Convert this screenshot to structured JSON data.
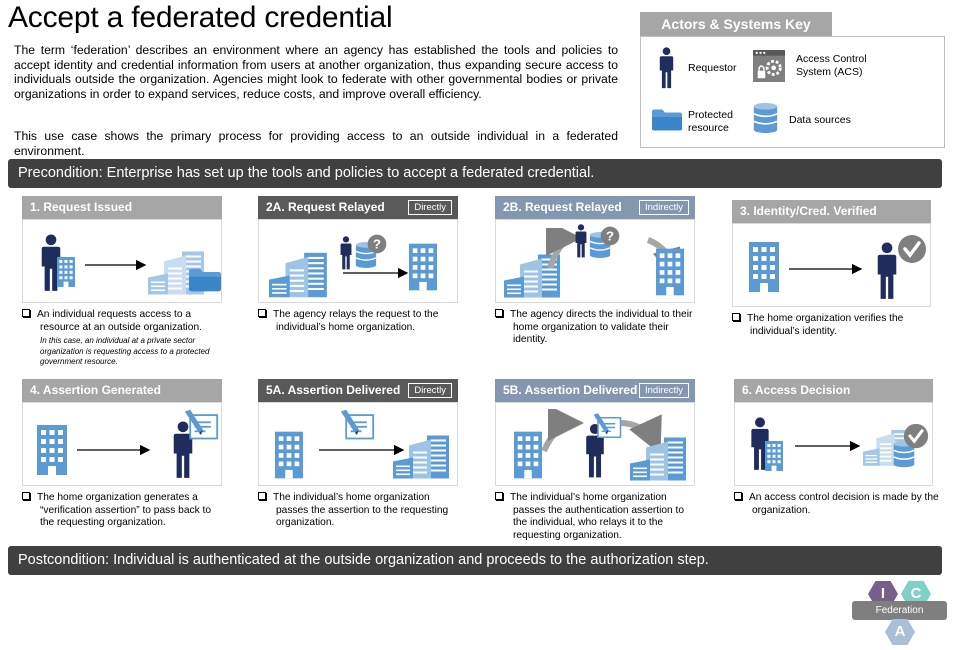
{
  "title": "Accept a federated credential",
  "intro": {
    "para1": "The term ‘federation’ describes an environment where an agency has established the tools and policies to accept identity and credential information from users at another organization, thus expanding secure access to individuals outside the organization.  Agencies might look to federate with other governmental bodies or private organizations in order to expand services, reduce costs, and improve overall efficiency.",
    "para2": "This use case shows the primary process for providing access to an outside individual in a federated environment."
  },
  "key": {
    "title": "Actors & Systems Key",
    "requestor": "Requestor",
    "acs": "Access Control System (ACS)",
    "protected_line1": "Protected",
    "protected_line2": "resource",
    "data_sources": "Data sources"
  },
  "precondition": "Precondition: Enterprise has set up the tools and policies to accept a federated credential.",
  "postcondition": "Postcondition: Individual is authenticated at the outside organization and proceeds to the authorization step.",
  "steps": [
    {
      "title": "1. Request Issued",
      "tag": "",
      "text": "An individual requests access to a resource at an outside organization.",
      "note": "In this case, an individual at a private sector organization is requesting access to a protected government resource."
    },
    {
      "title": "2A. Request Relayed",
      "tag": "Directly",
      "text": "The agency relays the request to the individual’s home organization.",
      "note": ""
    },
    {
      "title": "2B. Request Relayed",
      "tag": "Indirectly",
      "text": "The agency directs the individual to their home organization to validate their identity.",
      "note": ""
    },
    {
      "title": "3. Identity/Cred. Verified",
      "tag": "",
      "text": "The home organization verifies the individual’s identity.",
      "note": ""
    },
    {
      "title": "4. Assertion Generated",
      "tag": "",
      "text": "The home organization generates a “verification assertion” to pass back to the requesting organization.",
      "note": ""
    },
    {
      "title": "5A. Assertion Delivered",
      "tag": "Directly",
      "text": "The individual’s home organization passes the assertion to the requesting organization.",
      "note": ""
    },
    {
      "title": "5B. Assertion Delivered",
      "tag": "Indirectly",
      "text": "The individual’s home organization passes the authentication assertion to the individual, who relays it to the requesting organization.",
      "note": ""
    },
    {
      "title": "6. Access Decision",
      "tag": "",
      "text": "An access control decision is made by the organization.",
      "note": ""
    }
  ],
  "logo": {
    "i": "I",
    "c": "C",
    "a": "A",
    "label": "Federation"
  },
  "colors": {
    "icon_blue": "#5b9bd5",
    "person_navy": "#1f2d5c",
    "banner": "#404040",
    "step_gray": "#a6a6a6",
    "step_dark": "#595959",
    "step_blue": "#8497b0"
  }
}
